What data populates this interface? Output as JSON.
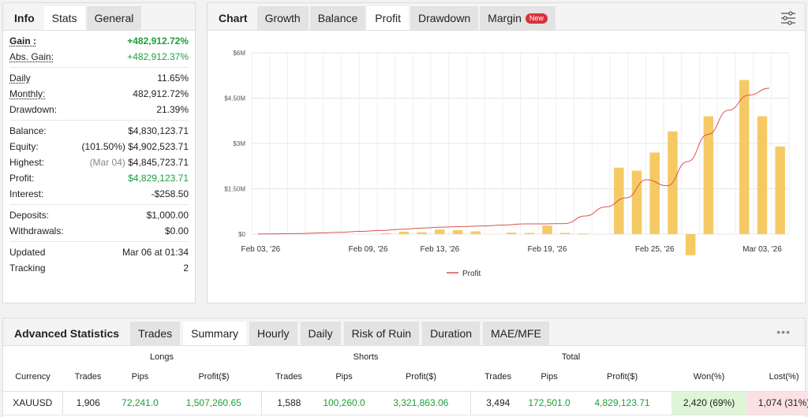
{
  "left_tabs": [
    {
      "label": "Info",
      "state": "plain"
    },
    {
      "label": "Stats",
      "state": "active"
    },
    {
      "label": "General",
      "state": "inactive"
    }
  ],
  "stats": {
    "gain": {
      "label": "Gain :",
      "value": "+482,912.72%"
    },
    "abs_gain": {
      "label": "Abs. Gain:",
      "value": "+482,912.37%"
    },
    "daily": {
      "label": "Daily",
      "value": "11.65%"
    },
    "monthly": {
      "label": "Monthly:",
      "value": "482,912.72%"
    },
    "drawdown": {
      "label": "Drawdown:",
      "value": "21.39%"
    },
    "balance": {
      "label": "Balance:",
      "value": "$4,830,123.71"
    },
    "equity": {
      "label": "Equity:",
      "note": "(101.50%)",
      "value": "$4,902,523.71"
    },
    "highest": {
      "label": "Highest:",
      "note": "(Mar 04)",
      "value": "$4,845,723.71"
    },
    "profit": {
      "label": "Profit:",
      "value": "$4,829,123.71"
    },
    "interest": {
      "label": "Interest:",
      "value": "-$258.50"
    },
    "deposits": {
      "label": "Deposits:",
      "value": "$1,000.00"
    },
    "withdrawals": {
      "label": "Withdrawals:",
      "value": "$0.00"
    },
    "updated": {
      "label": "Updated",
      "value": "Mar 06 at 01:34"
    },
    "tracking": {
      "label": "Tracking",
      "value": "2"
    }
  },
  "chart_tabs": [
    {
      "label": "Chart",
      "state": "plain"
    },
    {
      "label": "Growth",
      "state": "inactive"
    },
    {
      "label": "Balance",
      "state": "inactive"
    },
    {
      "label": "Profit",
      "state": "active"
    },
    {
      "label": "Drawdown",
      "state": "inactive"
    },
    {
      "label": "Margin",
      "state": "inactive"
    }
  ],
  "new_badge": "New",
  "chart_data": {
    "type": "bar",
    "y_ticks": [
      "$0",
      "$1.50M",
      "$3M",
      "$4.50M",
      "$6M"
    ],
    "ylim": [
      0,
      6000000
    ],
    "x_tick_labels": [
      "Feb 03, '26",
      "Feb 09, '26",
      "Feb 13, '26",
      "Feb 19, '26",
      "Feb 25, '26",
      "Mar 03, '26"
    ],
    "x_tick_index": [
      0,
      6,
      10,
      16,
      22,
      28
    ],
    "bars": [
      null,
      null,
      null,
      30000,
      80000,
      60000,
      150000,
      130000,
      90000,
      50000,
      40000,
      280000,
      40000,
      20000,
      2200000,
      2100000,
      2700000,
      3400000,
      -700000,
      3900000,
      5100000,
      3900000,
      2900000
    ],
    "bar_start_index": 0,
    "line": [
      5000,
      10000,
      20000,
      40000,
      60000,
      90000,
      120000,
      160000,
      200000,
      230000,
      250000,
      270000,
      300000,
      340000,
      340000,
      350000,
      600000,
      900000,
      1200000,
      1800000,
      1600000,
      2400000,
      3300000,
      4100000,
      4600000,
      4830000
    ],
    "legend": "Profit",
    "bar_color": "#f5ca64",
    "line_color": "#d9534f",
    "grid": true
  },
  "adv": {
    "tabs": [
      {
        "label": "Advanced Statistics",
        "state": "plain"
      },
      {
        "label": "Trades",
        "state": "inactive"
      },
      {
        "label": "Summary",
        "state": "active"
      },
      {
        "label": "Hourly",
        "state": "inactive"
      },
      {
        "label": "Daily",
        "state": "inactive"
      },
      {
        "label": "Risk of Ruin",
        "state": "inactive"
      },
      {
        "label": "Duration",
        "state": "inactive"
      },
      {
        "label": "MAE/MFE",
        "state": "inactive"
      }
    ],
    "more": "•••",
    "groups": {
      "longs": "Longs",
      "shorts": "Shorts",
      "total": "Total"
    },
    "columns": [
      "Currency",
      "Trades",
      "Pips",
      "Profit($)",
      "Trades",
      "Pips",
      "Profit($)",
      "Trades",
      "Pips",
      "Profit($)",
      "Won(%)",
      "Lost(%)"
    ],
    "row": {
      "currency": "XAUUSD",
      "long_trades": "1,906",
      "long_pips": "72,241.0",
      "long_profit": "1,507,260.65",
      "short_trades": "1,588",
      "short_pips": "100,260.0",
      "short_profit": "3,321,863.06",
      "total_trades": "3,494",
      "total_pips": "172,501.0",
      "total_profit": "4,829,123.71",
      "won": "2,420 (69%)",
      "lost": "1,074 (31%)"
    }
  }
}
